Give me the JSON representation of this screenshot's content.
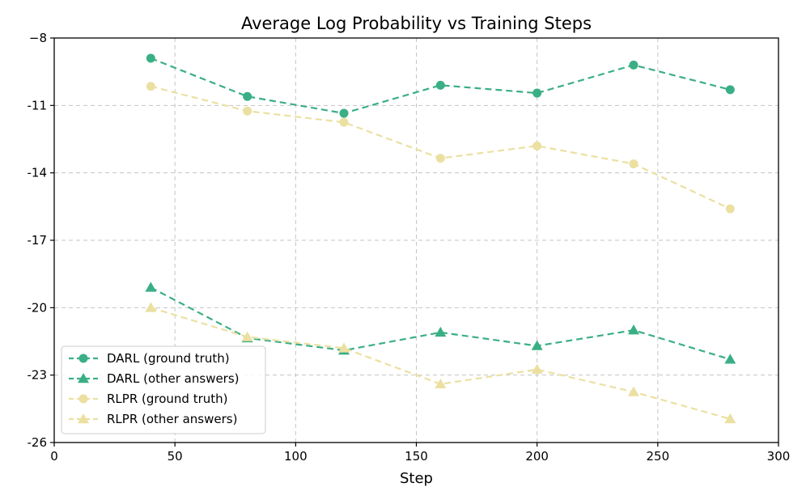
{
  "chart_data": {
    "type": "line",
    "title": "Average Log Probability vs Training Steps",
    "xlabel": "Step",
    "ylabel": "",
    "xlim": [
      0,
      300
    ],
    "ylim": [
      -26,
      -8
    ],
    "xticks": [
      0,
      50,
      100,
      150,
      200,
      250,
      300
    ],
    "yticks": [
      -8,
      -11,
      -14,
      -17,
      -20,
      -23,
      -26
    ],
    "xtick_labels": [
      "0",
      "50",
      "100",
      "150",
      "200",
      "250",
      "300"
    ],
    "ytick_labels": [
      "−8",
      "-11",
      "-14",
      "-17",
      "-20",
      "-23",
      "-26"
    ],
    "grid": true,
    "legend_position": "lower-left",
    "x": [
      40,
      80,
      120,
      160,
      200,
      240,
      280
    ],
    "series": [
      {
        "name": "DARL (ground truth)",
        "color": "#3aaf85",
        "marker": "circle",
        "values": [
          -8.9,
          -10.6,
          -11.35,
          -10.1,
          -10.45,
          -9.2,
          -10.3
        ]
      },
      {
        "name": "DARL (other answers)",
        "color": "#3aaf85",
        "marker": "triangle",
        "values": [
          -19.1,
          -21.35,
          -21.9,
          -21.1,
          -21.7,
          -21.0,
          -22.3
        ]
      },
      {
        "name": "RLPR (ground truth)",
        "color": "#ebe0a1",
        "marker": "circle",
        "values": [
          -10.15,
          -11.25,
          -11.75,
          -13.35,
          -12.8,
          -13.6,
          -15.6
        ]
      },
      {
        "name": "RLPR (other answers)",
        "color": "#ebe0a1",
        "marker": "triangle",
        "values": [
          -20.0,
          -21.3,
          -21.8,
          -23.4,
          -22.75,
          -23.75,
          -24.95
        ]
      }
    ]
  }
}
